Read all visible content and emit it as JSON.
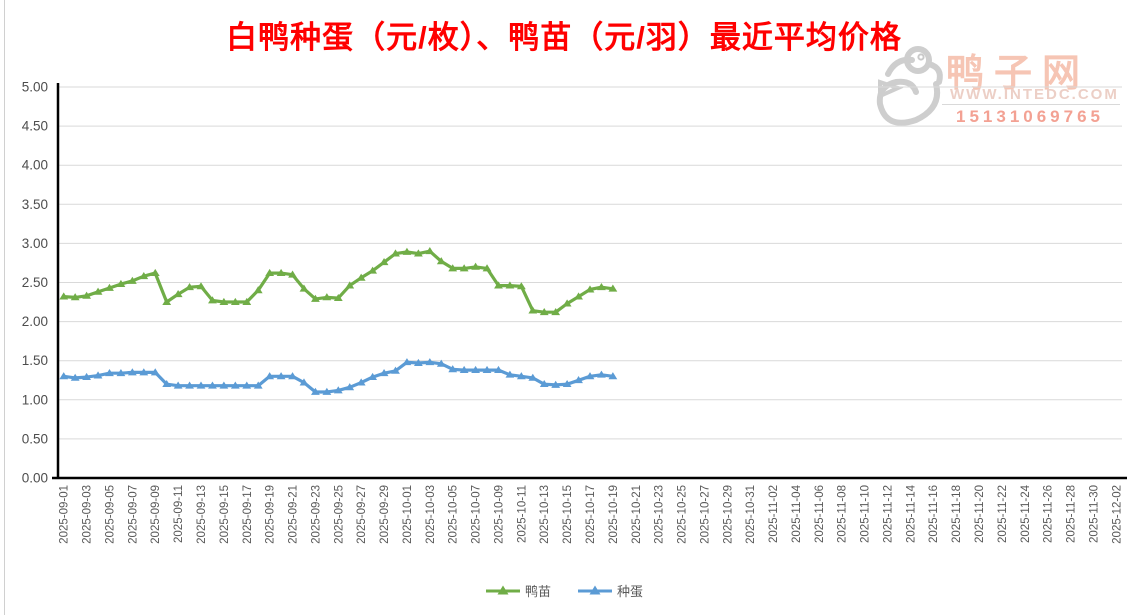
{
  "title": "白鸭种蛋（元/枚）、鸭苗（元/羽）最近平均价格",
  "watermark": {
    "site_name": "鸭子网",
    "url": "WWW.INTEDC.COM",
    "phone": "15131069765"
  },
  "colors": {
    "title_red": "#ff0000",
    "duckling_green": "#70ad47",
    "egg_blue": "#5b9bd5",
    "gridline_gray": "#d9d9d9",
    "axis_black": "#000000",
    "tick_label_gray": "#595959",
    "watermark_pink": "#f6c5b4"
  },
  "chart_data": {
    "type": "line",
    "title": "白鸭种蛋（元/枚）、鸭苗（元/羽）最近平均价格",
    "xlabel": "",
    "ylabel": "",
    "ylim": [
      0,
      5
    ],
    "grid": true,
    "legend_position": "bottom",
    "y_ticks": [
      "0.00",
      "0.50",
      "1.00",
      "1.50",
      "2.00",
      "2.50",
      "3.00",
      "3.50",
      "4.00",
      "4.50",
      "5.00"
    ],
    "x_start_date": "2025-09-01",
    "x_end_date": "2025-12-02",
    "x_labels": [
      "2025-09-01",
      "2025-09-03",
      "2025-09-05",
      "2025-09-07",
      "2025-09-09",
      "2025-09-11",
      "2025-09-13",
      "2025-09-15",
      "2025-09-17",
      "2025-09-19",
      "2025-09-21",
      "2025-09-23",
      "2025-09-25",
      "2025-09-27",
      "2025-09-29",
      "2025-10-01",
      "2025-10-03",
      "2025-10-05",
      "2025-10-07",
      "2025-10-09",
      "2025-10-11",
      "2025-10-13",
      "2025-10-15",
      "2025-10-17",
      "2025-10-19",
      "2025-10-21",
      "2025-10-23",
      "2025-10-25",
      "2025-10-27",
      "2025-10-29",
      "2025-10-31",
      "2025-11-02",
      "2025-11-04",
      "2025-11-06",
      "2025-11-08",
      "2025-11-10",
      "2025-11-12",
      "2025-11-14",
      "2025-11-16",
      "2025-11-18",
      "2025-11-20",
      "2025-11-22",
      "2025-11-24",
      "2025-11-26",
      "2025-11-28",
      "2025-11-30",
      "2025-12-02"
    ],
    "series": [
      {
        "name": "鸭苗",
        "color": "#70ad47",
        "start_date": "2025-09-01",
        "values": [
          2.32,
          2.31,
          2.33,
          2.38,
          2.43,
          2.48,
          2.52,
          2.58,
          2.62,
          2.25,
          2.35,
          2.44,
          2.45,
          2.27,
          2.25,
          2.25,
          2.25,
          2.4,
          2.62,
          2.62,
          2.6,
          2.42,
          2.29,
          2.31,
          2.3,
          2.46,
          2.56,
          2.65,
          2.76,
          2.87,
          2.89,
          2.87,
          2.9,
          2.77,
          2.68,
          2.68,
          2.7,
          2.68,
          2.46,
          2.46,
          2.45,
          2.14,
          2.12,
          2.12,
          2.23,
          2.32,
          2.41,
          2.44,
          2.42
        ]
      },
      {
        "name": "种蛋",
        "color": "#5b9bd5",
        "start_date": "2025-09-01",
        "values": [
          1.3,
          1.28,
          1.29,
          1.31,
          1.34,
          1.34,
          1.35,
          1.35,
          1.35,
          1.2,
          1.18,
          1.18,
          1.18,
          1.18,
          1.18,
          1.18,
          1.18,
          1.18,
          1.3,
          1.3,
          1.3,
          1.22,
          1.1,
          1.1,
          1.12,
          1.16,
          1.22,
          1.29,
          1.34,
          1.37,
          1.48,
          1.47,
          1.48,
          1.46,
          1.39,
          1.38,
          1.38,
          1.38,
          1.38,
          1.32,
          1.3,
          1.28,
          1.2,
          1.19,
          1.2,
          1.25,
          1.3,
          1.32,
          1.3
        ]
      }
    ]
  }
}
